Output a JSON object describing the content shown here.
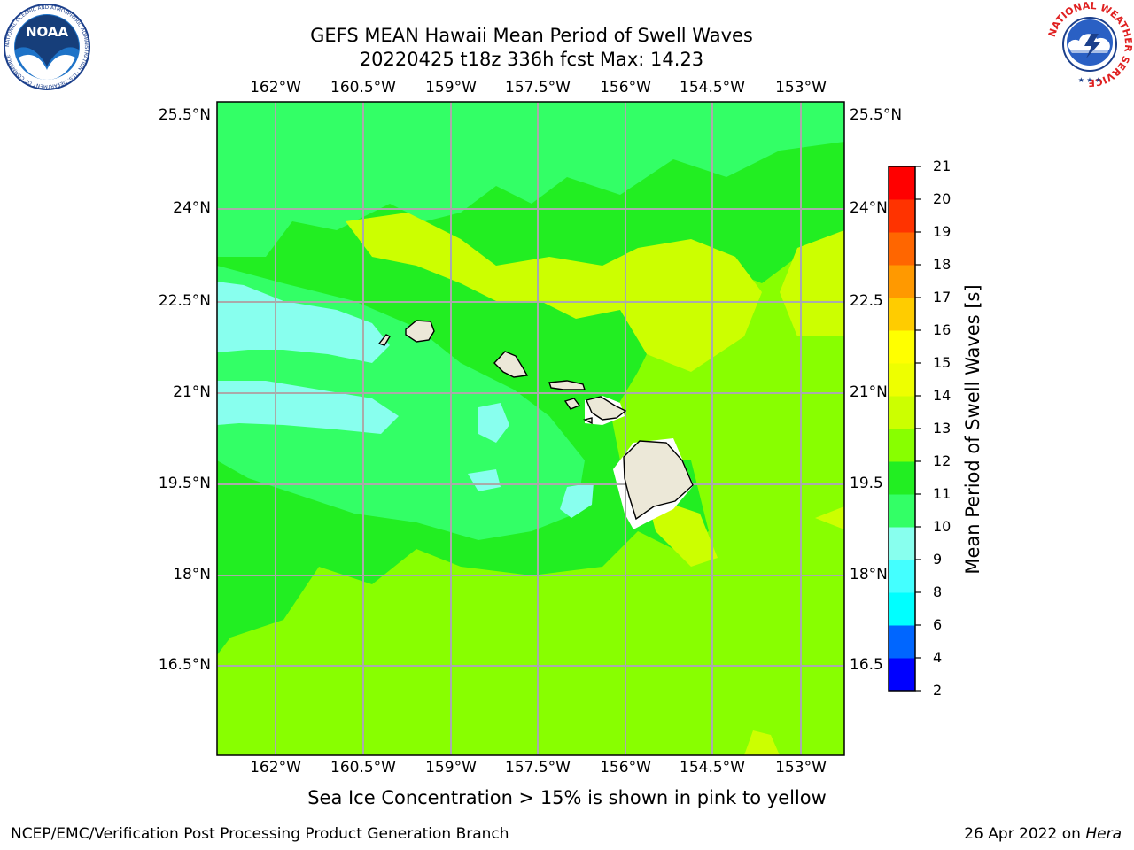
{
  "header": {
    "title_line1": "GEFS MEAN Hawaii Mean Period of Swell Waves",
    "title_line2": "20220425 t18z 336h fcst   Max: 14.23"
  },
  "map": {
    "lon_labels": [
      "162°W",
      "160.5°W",
      "159°W",
      "157.5°W",
      "156°W",
      "154.5°W",
      "153°W"
    ],
    "lat_labels": [
      "25.5°N",
      "24°N",
      "22.5°N",
      "21°N",
      "19.5°N",
      "18°N",
      "16.5°N"
    ],
    "lat_labels_right": [
      "25.5°N",
      "24°N",
      "22.5",
      "21°N",
      "19.5",
      "18°N",
      "16.5"
    ],
    "islands": [
      "Kauai",
      "Niihau",
      "Oahu",
      "Molokai",
      "Lanai",
      "Maui",
      "Kahoolawe",
      "Hawaii"
    ],
    "colors": {
      "background_field": "#88ff00",
      "land": "#ece8d8",
      "grid": "#aaaaaa"
    }
  },
  "colorbar": {
    "label": "Mean Period of Swell Waves [s]",
    "ticks": [
      "2",
      "4",
      "6",
      "8",
      "9",
      "10",
      "11",
      "12",
      "13",
      "14",
      "15",
      "16",
      "17",
      "18",
      "19",
      "20",
      "21"
    ],
    "bin_colors": [
      "#0000ff",
      "#0066ff",
      "#00ffff",
      "#44ffff",
      "#88ffee",
      "#33ff66",
      "#22ee22",
      "#88ff00",
      "#ccff00",
      "#eeff00",
      "#ffff00",
      "#ffcc00",
      "#ff9900",
      "#ff6600",
      "#ff3300",
      "#ff0000"
    ]
  },
  "ice_note": "Sea Ice Concentration > 15% is shown in pink to yellow",
  "footer": {
    "left": "NCEP/EMC/Verification Post Processing Product Generation Branch",
    "right_date": "26 Apr 2022 on",
    "right_host": "Hera"
  },
  "logos": {
    "noaa_text": "NOAA",
    "noaa_ring": "NATIONAL OCEANIC AND ATMOSPHERIC ADMINISTRATION · U.S. DEPARTMENT OF COMMERCE",
    "nws_ring": "NATIONAL WEATHER SERVICE"
  }
}
